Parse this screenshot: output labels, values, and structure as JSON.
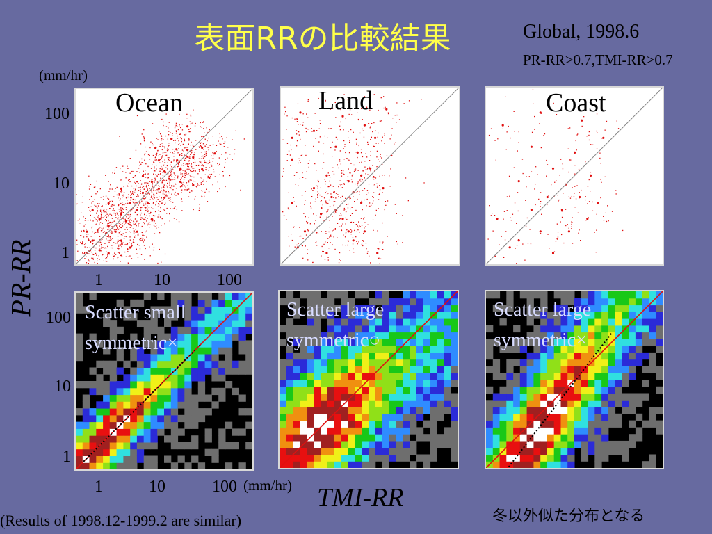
{
  "title": "表面RRの比較結果",
  "subtitle_line1": "Global,  1998.6",
  "subtitle_line2": "PR-RR>0.7,TMI-RR>0.7",
  "unit_top": "(mm/hr)",
  "unit_bottom": "(mm/hr)",
  "y_axis_label": "PR-RR",
  "x_axis_label": "TMI-RR",
  "footnote": "(Results of 1998.12-1999.2 are similar)",
  "japanese_note": "冬以外似た分布となる",
  "y_ticks": [
    "100",
    "10",
    "1"
  ],
  "x_ticks": [
    "1",
    "10",
    "100"
  ],
  "panels_top": [
    {
      "title": "Ocean"
    },
    {
      "title": "Land"
    },
    {
      "title": "Coast"
    }
  ],
  "panels_bottom": [
    {
      "note_line1": "Scatter small",
      "note_line2": "symmetric×"
    },
    {
      "note_line1": "Scatter large",
      "note_line2": "symmetric○"
    },
    {
      "note_line1": "Scatter large",
      "note_line2": "symmetric×"
    }
  ],
  "colors": {
    "background": "#676aa0",
    "title": "#ffff4a",
    "scatter_points": "#e01010",
    "density_scale": [
      "#000000",
      "#6e6e6e",
      "#2b2bd8",
      "#2f8cff",
      "#30e0e0",
      "#18c818",
      "#90e018",
      "#f0f018",
      "#f09010",
      "#e81010",
      "#a02020",
      "#ffffff"
    ]
  },
  "chart_data": [
    {
      "type": "scatter",
      "title": "Ocean",
      "xlabel": "TMI-RR",
      "ylabel": "PR-RR",
      "x_scale": "log",
      "y_scale": "log",
      "xlim": [
        0.7,
        200
      ],
      "ylim": [
        0.7,
        200
      ],
      "reference_line": "y=x",
      "points": [
        [
          1,
          1
        ],
        [
          1.2,
          1.5
        ],
        [
          1.5,
          1.1
        ],
        [
          2,
          2.4
        ],
        [
          2.5,
          2
        ],
        [
          3,
          3.5
        ],
        [
          3.5,
          2.8
        ],
        [
          4,
          5
        ],
        [
          5,
          4
        ],
        [
          6,
          7
        ],
        [
          7,
          5
        ],
        [
          8,
          10
        ],
        [
          10,
          8
        ],
        [
          12,
          14
        ],
        [
          14,
          11
        ],
        [
          18,
          20
        ],
        [
          20,
          15
        ],
        [
          25,
          28
        ],
        [
          30,
          22
        ],
        [
          40,
          30
        ],
        [
          2,
          5
        ],
        [
          5,
          2
        ],
        [
          3,
          8
        ],
        [
          8,
          3
        ],
        [
          1.5,
          3
        ],
        [
          3,
          1.5
        ],
        [
          10,
          20
        ],
        [
          20,
          10
        ],
        [
          15,
          40
        ],
        [
          40,
          15
        ],
        [
          1,
          2
        ],
        [
          2,
          1
        ],
        [
          6,
          12
        ],
        [
          12,
          6
        ],
        [
          4,
          1.2
        ],
        [
          1.2,
          4
        ],
        [
          25,
          60
        ],
        [
          60,
          25
        ],
        [
          9,
          30
        ],
        [
          30,
          9
        ]
      ]
    },
    {
      "type": "scatter",
      "title": "Land",
      "xlabel": "TMI-RR",
      "ylabel": "PR-RR",
      "x_scale": "log",
      "y_scale": "log",
      "xlim": [
        0.7,
        200
      ],
      "ylim": [
        0.7,
        200
      ],
      "reference_line": "y=x",
      "points": [
        [
          1,
          5
        ],
        [
          1,
          20
        ],
        [
          1.5,
          2
        ],
        [
          2,
          8
        ],
        [
          2,
          50
        ],
        [
          3,
          1
        ],
        [
          3,
          12
        ],
        [
          4,
          30
        ],
        [
          5,
          3
        ],
        [
          5,
          80
        ],
        [
          6,
          10
        ],
        [
          7,
          1.5
        ],
        [
          8,
          25
        ],
        [
          9,
          5
        ],
        [
          10,
          60
        ],
        [
          10,
          2
        ],
        [
          12,
          15
        ],
        [
          14,
          40
        ],
        [
          15,
          1
        ],
        [
          18,
          8
        ],
        [
          20,
          100
        ],
        [
          4,
          4
        ],
        [
          6,
          2
        ],
        [
          1.2,
          1.2
        ],
        [
          2.5,
          3.5
        ],
        [
          3.5,
          6
        ],
        [
          7,
          7
        ],
        [
          9,
          12
        ],
        [
          1,
          40
        ],
        [
          1.3,
          90
        ]
      ]
    },
    {
      "type": "scatter",
      "title": "Coast",
      "xlabel": "TMI-RR",
      "ylabel": "PR-RR",
      "x_scale": "log",
      "y_scale": "log",
      "xlim": [
        0.7,
        200
      ],
      "ylim": [
        0.7,
        200
      ],
      "reference_line": "y=x",
      "points": [
        [
          1,
          3
        ],
        [
          1.5,
          1.2
        ],
        [
          2,
          10
        ],
        [
          2,
          1.5
        ],
        [
          3,
          4
        ],
        [
          3,
          30
        ],
        [
          4,
          2
        ],
        [
          5,
          6
        ],
        [
          6,
          1
        ],
        [
          6,
          15
        ],
        [
          8,
          4
        ],
        [
          9,
          9
        ],
        [
          10,
          2
        ],
        [
          12,
          25
        ],
        [
          14,
          6
        ],
        [
          18,
          3
        ],
        [
          20,
          12
        ],
        [
          25,
          5
        ],
        [
          30,
          40
        ],
        [
          1.2,
          60
        ],
        [
          4,
          90
        ],
        [
          15,
          70
        ]
      ]
    },
    {
      "type": "heatmap",
      "title": "Scatter small symmetric×",
      "xlabel": "TMI-RR",
      "ylabel": "PR-RR",
      "x_scale": "log",
      "y_scale": "log",
      "xlim": [
        0.7,
        200
      ],
      "ylim": [
        0.7,
        200
      ],
      "reference_line": "y=x",
      "fit_line": "dotted",
      "center_slope": 1.0,
      "center_offset": 0.0,
      "spread": 0.45,
      "peak_x": 1.5
    },
    {
      "type": "heatmap",
      "title": "Scatter large symmetric○",
      "xlabel": "TMI-RR",
      "ylabel": "PR-RR",
      "x_scale": "log",
      "y_scale": "log",
      "xlim": [
        0.7,
        200
      ],
      "ylim": [
        0.7,
        200
      ],
      "reference_line": "y=x",
      "center_slope": 0.75,
      "center_offset": 0.12,
      "spread": 0.85,
      "peak_x": 2.5
    },
    {
      "type": "heatmap",
      "title": "Scatter large symmetric×",
      "xlabel": "TMI-RR",
      "ylabel": "PR-RR",
      "x_scale": "log",
      "y_scale": "log",
      "xlim": [
        0.7,
        200
      ],
      "ylim": [
        0.7,
        200
      ],
      "reference_line": "y=x",
      "fit_line": "dotted",
      "center_slope": 1.3,
      "center_offset": -0.35,
      "spread": 0.8,
      "peak_x": 4.0
    }
  ]
}
